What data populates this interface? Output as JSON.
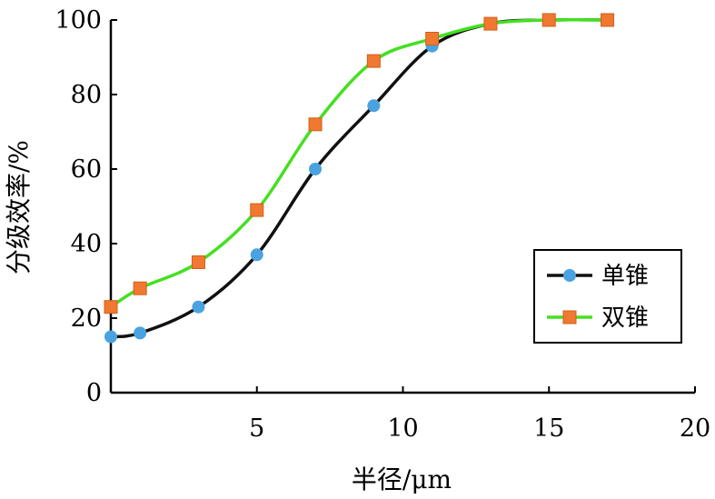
{
  "chart_data": {
    "type": "line",
    "title": "",
    "xlabel": "半径/μm",
    "ylabel": "分级效率/%",
    "xlim": [
      0,
      20
    ],
    "ylim": [
      0,
      100
    ],
    "xticks": [
      5,
      10,
      15,
      20
    ],
    "yticks": [
      0,
      20,
      40,
      60,
      80,
      100
    ],
    "x_origin_label": "",
    "grid": false,
    "legend_position": "bottom-right",
    "series": [
      {
        "name": "单锥",
        "marker": "circle",
        "line_color": "#111111",
        "marker_color": "#4aa3e0",
        "x": [
          0,
          1,
          3,
          5,
          7,
          9,
          11,
          13,
          15,
          17
        ],
        "y": [
          15,
          16,
          23,
          37,
          60,
          77,
          93,
          99,
          100,
          100
        ]
      },
      {
        "name": "双锥",
        "marker": "square",
        "line_color": "#44e020",
        "marker_color": "#f07830",
        "x": [
          0,
          1,
          3,
          5,
          7,
          9,
          11,
          13,
          15,
          17
        ],
        "y": [
          23,
          28,
          35,
          49,
          72,
          89,
          95,
          99,
          100,
          100
        ]
      }
    ]
  }
}
